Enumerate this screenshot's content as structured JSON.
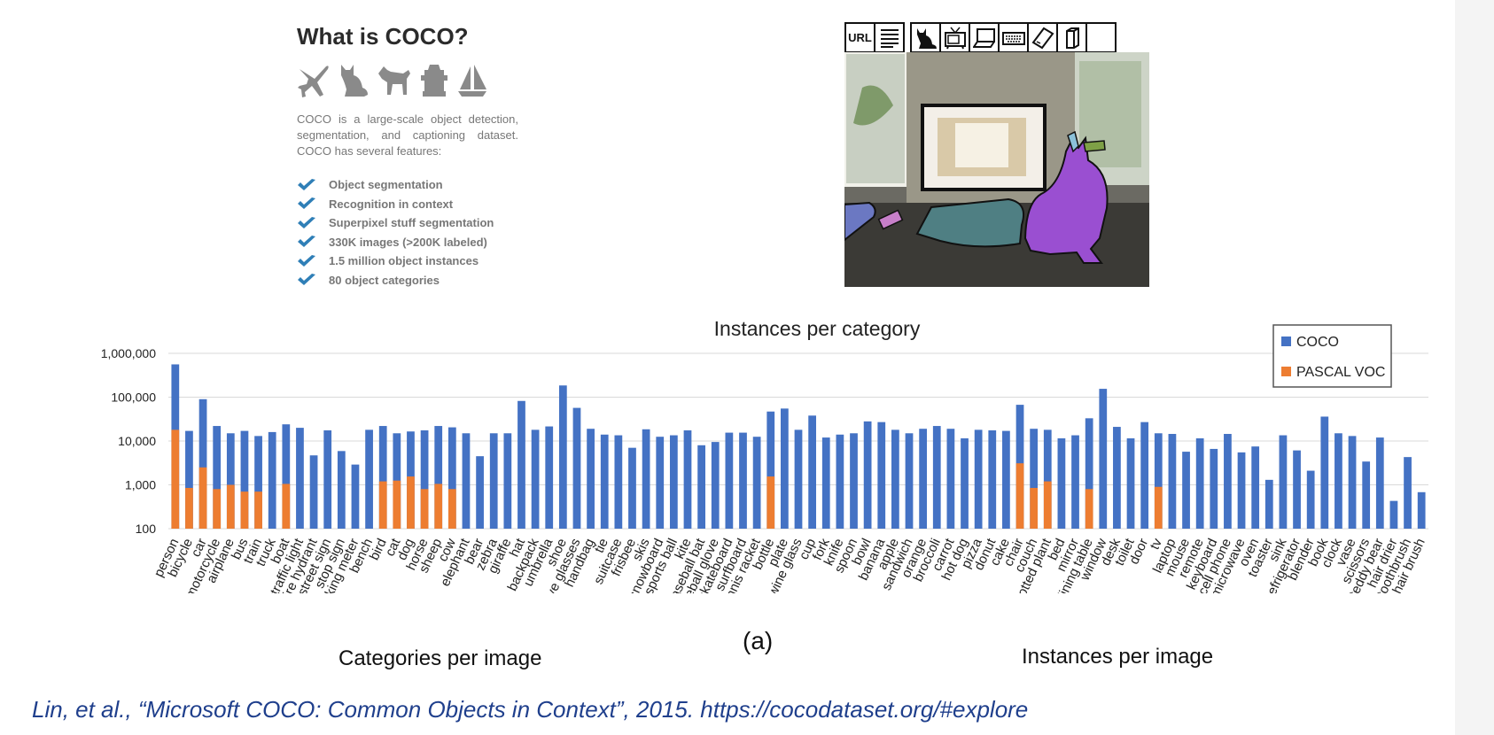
{
  "intro": {
    "title": "What is COCO?",
    "description": "COCO is a large-scale object detection, segmentation, and captioning dataset. COCO has several features:",
    "features": [
      "Object segmentation",
      "Recognition in context",
      "Superpixel stuff segmentation",
      "330K images (>200K labeled)",
      "1.5 million object instances",
      "80 object categories"
    ],
    "icons": [
      "airplane-icon",
      "cat-icon",
      "dog-icon",
      "fire-hydrant-icon",
      "boat-icon"
    ]
  },
  "explore": {
    "toolbar": [
      {
        "name": "url-button",
        "label": "URL"
      },
      {
        "name": "caption-button",
        "label": ""
      },
      {
        "name": "cat-category-button",
        "label": ""
      },
      {
        "name": "tv-category-button",
        "label": ""
      },
      {
        "name": "laptop-category-button",
        "label": ""
      },
      {
        "name": "keyboard-category-button",
        "label": ""
      },
      {
        "name": "cell-phone-category-button",
        "label": ""
      },
      {
        "name": "book-category-button",
        "label": ""
      },
      {
        "name": "empty-category-button",
        "label": ""
      }
    ]
  },
  "chart_data": {
    "type": "bar",
    "title": "Instances per category",
    "xlabel": "",
    "ylabel": "",
    "y_scale": "log",
    "ylim": [
      100,
      1000000
    ],
    "y_ticks": [
      "100",
      "1,000",
      "10,000",
      "100,000",
      "1,000,000"
    ],
    "legend_position": "top-right",
    "colors": {
      "COCO": "#4472c4",
      "PASCAL VOC": "#ed7d31"
    },
    "categories": [
      "person",
      "bicycle",
      "car",
      "motorcycle",
      "airplane",
      "bus",
      "train",
      "truck",
      "boat",
      "traffic light",
      "fire hydrant",
      "street sign",
      "stop sign",
      "parking meter",
      "bench",
      "bird",
      "cat",
      "dog",
      "horse",
      "sheep",
      "cow",
      "elephant",
      "bear",
      "zebra",
      "giraffe",
      "hat",
      "backpack",
      "umbrella",
      "shoe",
      "eye glasses",
      "handbag",
      "tie",
      "suitcase",
      "frisbee",
      "skis",
      "snowboard",
      "sports ball",
      "kite",
      "baseball bat",
      "baseball glove",
      "skateboard",
      "surfboard",
      "tennis racket",
      "bottle",
      "plate",
      "wine glass",
      "cup",
      "fork",
      "knife",
      "spoon",
      "bowl",
      "banana",
      "apple",
      "sandwich",
      "orange",
      "broccoli",
      "carrot",
      "hot dog",
      "pizza",
      "donut",
      "cake",
      "chair",
      "couch",
      "potted plant",
      "bed",
      "mirror",
      "dining table",
      "window",
      "desk",
      "toilet",
      "door",
      "tv",
      "laptop",
      "mouse",
      "remote",
      "keyboard",
      "cell phone",
      "microwave",
      "oven",
      "toaster",
      "sink",
      "refrigerator",
      "blender",
      "book",
      "clock",
      "vase",
      "scissors",
      "teddy bear",
      "hair drier",
      "toothbrush",
      "hair brush"
    ],
    "series": [
      {
        "name": "COCO",
        "values": [
          560000,
          17000,
          90000,
          22000,
          15000,
          17000,
          13000,
          16000,
          24000,
          20000,
          4700,
          17500,
          5900,
          2900,
          18000,
          22000,
          15000,
          16500,
          17500,
          22000,
          20500,
          15000,
          4500,
          15000,
          15000,
          82000,
          18000,
          21500,
          185000,
          57000,
          19000,
          14000,
          13500,
          7000,
          18500,
          12500,
          13500,
          17500,
          8000,
          9500,
          15500,
          15500,
          12500,
          47000,
          55000,
          18000,
          38000,
          12000,
          14000,
          15000,
          28000,
          27000,
          18000,
          15000,
          19000,
          22000,
          19000,
          11500,
          18000,
          17500,
          17000,
          67000,
          19000,
          18000,
          11500,
          13500,
          33000,
          155000,
          21000,
          11500,
          27000,
          15000,
          14500,
          5700,
          11500,
          6600,
          14500,
          5500,
          7500,
          1300,
          13500,
          6100,
          2100,
          36000,
          15000,
          13000,
          3400,
          12000,
          430,
          4300,
          680
        ]
      },
      {
        "name": "PASCAL VOC",
        "values": [
          18000,
          850,
          2500,
          800,
          1000,
          700,
          700,
          null,
          1050,
          null,
          null,
          null,
          null,
          null,
          null,
          1200,
          1250,
          1550,
          800,
          1050,
          800,
          null,
          null,
          null,
          null,
          null,
          null,
          null,
          null,
          null,
          null,
          null,
          null,
          null,
          null,
          null,
          null,
          null,
          null,
          null,
          null,
          null,
          null,
          1550,
          null,
          null,
          null,
          null,
          null,
          null,
          null,
          null,
          null,
          null,
          null,
          null,
          null,
          null,
          null,
          null,
          null,
          3100,
          850,
          1200,
          null,
          null,
          800,
          null,
          null,
          null,
          null,
          900,
          null,
          null,
          null,
          null,
          null,
          null,
          null,
          null,
          null,
          null,
          null,
          null,
          null,
          null,
          null,
          null,
          null,
          null,
          null
        ]
      }
    ],
    "panel_label": "(a)",
    "caption_left": "Categories per image",
    "caption_right": "Instances per image"
  },
  "citation": "Lin, et al., “Microsoft COCO: Common Objects in Context”, 2015. https://cocodataset.org/#explore"
}
